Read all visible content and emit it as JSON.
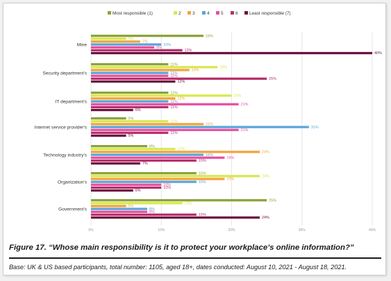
{
  "chart_data": {
    "type": "bar",
    "orientation": "horizontal",
    "categories": [
      "Mine",
      "Security department's",
      "IT department's",
      "Internet service provider's",
      "Technology industry's",
      "Organization's",
      "Government's"
    ],
    "series": [
      {
        "name": "Most responsible (1)",
        "color": "#8ca43a",
        "values": [
          16,
          11,
          11,
          5,
          8,
          15,
          25
        ]
      },
      {
        "name": "2",
        "color": "#d9e84f",
        "values": [
          5,
          18,
          20,
          11,
          12,
          24,
          13
        ]
      },
      {
        "name": "3",
        "color": "#f2a33c",
        "values": [
          7,
          14,
          12,
          16,
          24,
          19,
          5
        ]
      },
      {
        "name": "4",
        "color": "#5aa6d8",
        "values": [
          10,
          11,
          11,
          31,
          16,
          15,
          8
        ]
      },
      {
        "name": "5",
        "color": "#e84fa1",
        "values": [
          9,
          11,
          21,
          21,
          19,
          10,
          8
        ]
      },
      {
        "name": "6",
        "color": "#b8306c",
        "values": [
          13,
          25,
          11,
          11,
          15,
          10,
          15
        ]
      },
      {
        "name": "Least responsible (7)",
        "color": "#6e1040",
        "values": [
          40,
          12,
          6,
          5,
          7,
          6,
          24
        ]
      }
    ],
    "xlim": [
      0,
      40
    ],
    "xticks": [
      "0%",
      "10%",
      "20%",
      "30%",
      "40%"
    ],
    "legend_position": "top",
    "grid": true
  },
  "caption": "Figure 17. “Whose main responsibility is it to protect your workplace’s online information?”",
  "base_note": "Base: UK & US based participants, total number: 1105, aged 18+, dates conducted: August 10, 2021 - August 18, 2021."
}
